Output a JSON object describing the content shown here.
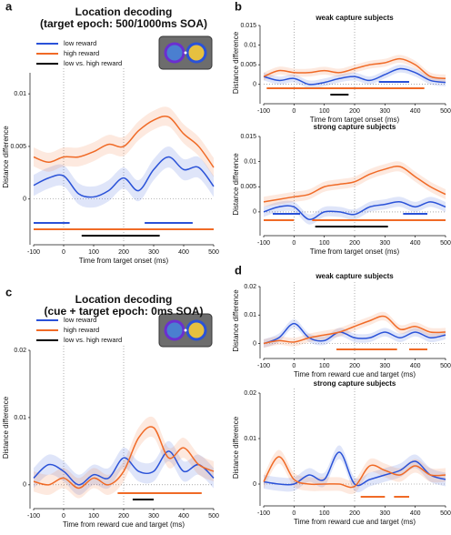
{
  "chart_data": [
    {
      "type": "line",
      "panel": "a",
      "title": "Location decoding",
      "subtitle": "(target epoch: 500/1000ms SOA)",
      "xlabel": "Time from target onset (ms)",
      "ylabel": "Distance difference",
      "x": [
        -100,
        -50,
        0,
        50,
        100,
        150,
        200,
        250,
        300,
        350,
        400,
        450,
        500
      ],
      "xlim": [
        -100,
        500
      ],
      "xticks": [
        -100,
        0,
        100,
        200,
        300,
        400,
        500
      ],
      "ylim": [
        -0.004,
        0.012
      ],
      "yticks": [
        0,
        0.005,
        0.01
      ],
      "vlines": [
        0,
        200
      ],
      "series": [
        {
          "name": "low reward",
          "color": "#2a52d8",
          "error": 0.001,
          "values": [
            0.0013,
            0.002,
            0.0022,
            0.0005,
            0.0002,
            0.0008,
            0.002,
            0.0008,
            0.0028,
            0.004,
            0.0028,
            0.003,
            0.0012
          ]
        },
        {
          "name": "high reward",
          "color": "#f06a26",
          "error": 0.0009,
          "values": [
            0.004,
            0.0035,
            0.004,
            0.004,
            0.0045,
            0.0052,
            0.005,
            0.0065,
            0.0075,
            0.0078,
            0.0062,
            0.005,
            0.003
          ]
        }
      ],
      "significance": [
        {
          "color": "#2a52d8",
          "ranges": [
            [
              -100,
              20
            ],
            [
              270,
              430
            ]
          ]
        },
        {
          "color": "#f06a26",
          "ranges": [
            [
              -100,
              500
            ]
          ]
        },
        {
          "name": "low vs. high reward",
          "color": "#000000",
          "ranges": [
            [
              60,
              320
            ]
          ]
        }
      ]
    },
    {
      "type": "line",
      "panel": "b",
      "title": "weak capture subjects",
      "xlabel": "Time from target onset (ms)",
      "ylabel": "Distance difference",
      "x": [
        -100,
        -50,
        0,
        50,
        100,
        150,
        200,
        250,
        300,
        350,
        400,
        450,
        500
      ],
      "xlim": [
        -100,
        500
      ],
      "xticks": [
        -100,
        0,
        100,
        200,
        300,
        400,
        500
      ],
      "ylim": [
        -0.004,
        0.015
      ],
      "yticks": [
        0,
        0.005,
        0.01,
        0.015
      ],
      "vlines": [
        0,
        200
      ],
      "series": [
        {
          "color": "#2a52d8",
          "error": 0.001,
          "values": [
            0.002,
            0.001,
            0.0015,
            0,
            0.0005,
            0.0015,
            0.002,
            0.001,
            0.0025,
            0.004,
            0.003,
            0.001,
            0.0005
          ]
        },
        {
          "color": "#f06a26",
          "error": 0.001,
          "values": [
            0.002,
            0.0035,
            0.003,
            0.003,
            0.0035,
            0.003,
            0.004,
            0.005,
            0.0055,
            0.0065,
            0.005,
            0.002,
            0.0015
          ]
        }
      ],
      "significance": [
        {
          "color": "#2a52d8",
          "ranges": [
            [
              280,
              380
            ]
          ]
        },
        {
          "color": "#f06a26",
          "ranges": [
            [
              -90,
              430
            ]
          ]
        },
        {
          "color": "#000000",
          "ranges": [
            [
              120,
              180
            ]
          ]
        }
      ]
    },
    {
      "type": "line",
      "title": "strong capture subjects",
      "xlabel": "Time from target onset (ms)",
      "ylabel": "Distance difference",
      "x": [
        -100,
        -50,
        0,
        50,
        100,
        150,
        200,
        250,
        300,
        350,
        400,
        450,
        500
      ],
      "xlim": [
        -100,
        500
      ],
      "xticks": [
        -100,
        0,
        100,
        200,
        300,
        400,
        500
      ],
      "ylim": [
        -0.004,
        0.015
      ],
      "yticks": [
        0,
        0.005,
        0.01,
        0.015
      ],
      "vlines": [
        0,
        200
      ],
      "series": [
        {
          "color": "#2a52d8",
          "error": 0.001,
          "values": [
            0,
            0.001,
            0.001,
            -0.0015,
            0,
            0,
            -0.0005,
            0.001,
            0.0015,
            0.002,
            0.001,
            0.002,
            0.001
          ]
        },
        {
          "color": "#f06a26",
          "error": 0.001,
          "values": [
            0.002,
            0.0025,
            0.003,
            0.0035,
            0.005,
            0.0055,
            0.006,
            0.0075,
            0.0085,
            0.009,
            0.007,
            0.005,
            0.0035
          ]
        }
      ],
      "significance": [
        {
          "color": "#2a52d8",
          "ranges": [
            [
              -70,
              20
            ],
            [
              360,
              440
            ]
          ]
        },
        {
          "color": "#f06a26",
          "ranges": [
            [
              -100,
              0
            ],
            [
              60,
              500
            ]
          ]
        },
        {
          "color": "#000000",
          "ranges": [
            [
              70,
              310
            ]
          ]
        }
      ]
    },
    {
      "type": "line",
      "panel": "c",
      "title": "Location decoding",
      "subtitle": "(cue + target epoch: 0ms SOA)",
      "xlabel": "Time from reward cue and target (ms)",
      "ylabel": "Distance difference",
      "x": [
        -100,
        -50,
        0,
        50,
        100,
        150,
        200,
        250,
        300,
        350,
        400,
        450,
        500
      ],
      "xlim": [
        -100,
        500
      ],
      "xticks": [
        -100,
        0,
        100,
        200,
        300,
        400,
        500
      ],
      "ylim": [
        -0.003,
        0.02
      ],
      "yticks": [
        0,
        0.01,
        0.02
      ],
      "vlines": [
        0,
        200
      ],
      "series": [
        {
          "name": "low reward",
          "color": "#2a52d8",
          "error": 0.0015,
          "values": [
            0.001,
            0.003,
            0.002,
            0,
            0.0015,
            0.001,
            0.004,
            0.002,
            0.002,
            0.005,
            0.002,
            0.003,
            0.001
          ]
        },
        {
          "name": "high reward",
          "color": "#f06a26",
          "error": 0.0015,
          "values": [
            0.0005,
            0,
            0.001,
            -0.0005,
            0.001,
            0,
            0.002,
            0.007,
            0.0085,
            0.004,
            0.0055,
            0.003,
            0.002
          ]
        }
      ],
      "significance": [
        {
          "color": "#f06a26",
          "ranges": [
            [
              180,
              460
            ]
          ]
        },
        {
          "name": "low vs. high reward",
          "color": "#000000",
          "ranges": [
            [
              230,
              300
            ]
          ]
        }
      ]
    },
    {
      "type": "line",
      "panel": "d",
      "title": "weak capture subjects",
      "xlabel": "Time from reward cue and target (ms)",
      "ylabel": "Distance difference",
      "x": [
        -100,
        -50,
        0,
        50,
        100,
        150,
        200,
        250,
        300,
        350,
        400,
        450,
        500
      ],
      "xlim": [
        -100,
        500
      ],
      "xticks": [
        -100,
        0,
        100,
        200,
        300,
        400,
        500
      ],
      "ylim": [
        -0.004,
        0.02
      ],
      "yticks": [
        0,
        0.01,
        0.02
      ],
      "vlines": [
        0,
        200
      ],
      "series": [
        {
          "color": "#2a52d8",
          "error": 0.0015,
          "values": [
            0,
            0.002,
            0.007,
            0.002,
            0.001,
            0.004,
            0.002,
            0.002,
            0.004,
            0.002,
            0.004,
            0.002,
            0.003
          ]
        },
        {
          "color": "#f06a26",
          "error": 0.0015,
          "values": [
            0,
            0.001,
            0.0005,
            0.002,
            0.003,
            0.004,
            0.006,
            0.008,
            0.0095,
            0.005,
            0.006,
            0.004,
            0.004
          ]
        }
      ],
      "significance": [
        {
          "color": "#f06a26",
          "ranges": [
            [
              140,
              340
            ],
            [
              380,
              440
            ]
          ]
        }
      ]
    },
    {
      "type": "line",
      "title": "strong capture subjects",
      "xlabel": "Time from reward cue and target (ms)",
      "ylabel": "Distance difference",
      "x": [
        -100,
        -50,
        0,
        50,
        100,
        150,
        200,
        250,
        300,
        350,
        400,
        450,
        500
      ],
      "xlim": [
        -100,
        500
      ],
      "xticks": [
        -100,
        0,
        100,
        200,
        300,
        400,
        500
      ],
      "ylim": [
        -0.004,
        0.02
      ],
      "yticks": [
        0,
        0.01,
        0.02
      ],
      "vlines": [
        0,
        200
      ],
      "series": [
        {
          "color": "#2a52d8",
          "error": 0.0015,
          "values": [
            0.0005,
            0,
            0,
            0.002,
            0.001,
            0.007,
            0,
            0.001,
            0.002,
            0.003,
            0.005,
            0.002,
            0.001
          ]
        },
        {
          "color": "#f06a26",
          "error": 0.0015,
          "values": [
            0.0005,
            0.006,
            0.001,
            0,
            0,
            0,
            -0.0005,
            0.004,
            0.003,
            0.002,
            0.004,
            0.002,
            0.002
          ]
        }
      ],
      "significance": [
        {
          "color": "#f06a26",
          "ranges": [
            [
              220,
              300
            ],
            [
              330,
              380
            ]
          ]
        }
      ]
    }
  ]
}
